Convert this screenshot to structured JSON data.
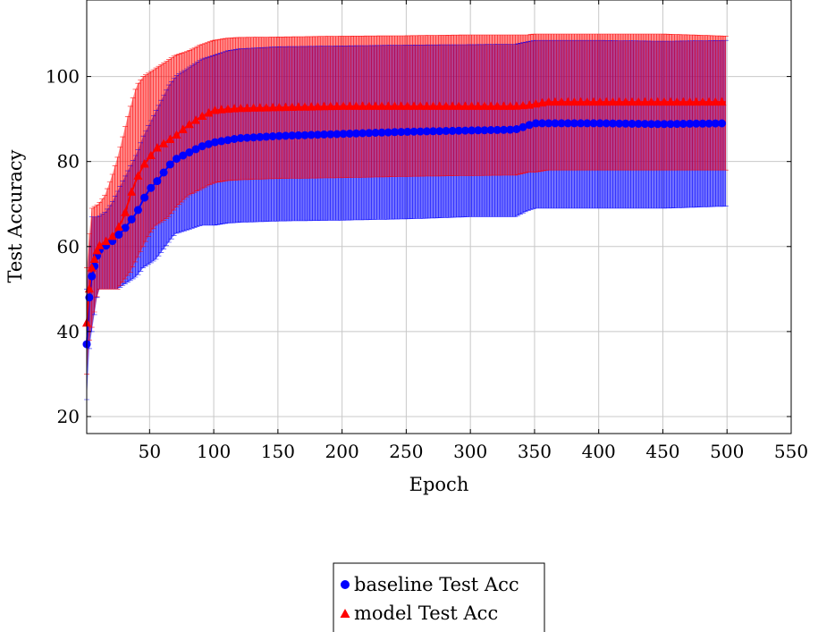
{
  "chart_data": {
    "type": "line",
    "xlabel": "Epoch",
    "ylabel": "Test Accuracy",
    "xlim": [
      1,
      550
    ],
    "ylim": [
      16,
      118
    ],
    "xticks": [
      50,
      100,
      150,
      200,
      250,
      300,
      350,
      400,
      450,
      500,
      550
    ],
    "yticks": [
      20,
      40,
      60,
      80,
      100
    ],
    "grid": true,
    "legend_position": "bottom-center",
    "series": [
      {
        "name": "baseline Test Acc",
        "color": "#0000ff",
        "marker": "circle",
        "x": [
          1,
          3,
          5,
          10,
          15,
          20,
          25,
          30,
          35,
          40,
          45,
          50,
          55,
          60,
          65,
          70,
          80,
          90,
          100,
          110,
          120,
          150,
          200,
          250,
          300,
          335,
          345,
          350,
          400,
          450,
          500
        ],
        "mean": [
          37,
          48,
          53,
          59,
          60,
          61,
          62.5,
          64,
          66,
          68,
          71,
          73.5,
          75,
          77,
          79,
          80.5,
          82,
          83.5,
          84.5,
          85,
          85.5,
          86,
          86.5,
          87,
          87.3,
          87.5,
          88.5,
          89,
          89,
          88.8,
          89
        ],
        "upper": [
          50,
          60,
          67,
          67,
          68,
          70,
          73,
          76,
          79,
          82,
          86,
          89,
          92,
          95,
          98,
          100,
          102,
          104,
          105,
          106,
          106.5,
          107,
          107.2,
          107.4,
          107.5,
          107.6,
          108.2,
          108.5,
          108.5,
          108.3,
          108.5
        ],
        "lower": [
          24,
          36,
          40,
          50,
          50,
          50,
          50,
          51,
          52,
          53,
          55,
          56,
          57,
          59,
          61,
          63,
          64,
          65,
          65,
          65.5,
          65.7,
          66,
          66.2,
          66.5,
          67,
          67,
          68.5,
          69,
          69,
          69,
          69.5
        ]
      },
      {
        "name": "model Test Acc",
        "color": "#ff0000",
        "marker": "triangle",
        "x": [
          1,
          3,
          5,
          10,
          15,
          20,
          25,
          30,
          35,
          40,
          45,
          50,
          55,
          60,
          65,
          70,
          80,
          90,
          100,
          110,
          120,
          150,
          200,
          250,
          300,
          335,
          345,
          350,
          360,
          400,
          450,
          500
        ],
        "mean": [
          42,
          50,
          55,
          60,
          61,
          62,
          64,
          67,
          72,
          76,
          79,
          81,
          83,
          84,
          85,
          86,
          88.5,
          90.5,
          92,
          92.3,
          92.5,
          92.7,
          93,
          93,
          93,
          93,
          93.2,
          93.5,
          94,
          94,
          94,
          94
        ],
        "upper": [
          55,
          63,
          69,
          70,
          72,
          76,
          81,
          87,
          93,
          98,
          100,
          101,
          102,
          103,
          104,
          105,
          106,
          107.5,
          108.5,
          109,
          109.2,
          109.3,
          109.5,
          109.6,
          109.8,
          109.8,
          109.8,
          110,
          110,
          110,
          110,
          109.5
        ],
        "lower": [
          30,
          38,
          41,
          50,
          50,
          50,
          50,
          52,
          54,
          57,
          60,
          63,
          65,
          66,
          67,
          69,
          72,
          73.5,
          75,
          75.5,
          75.7,
          76,
          76.2,
          76.5,
          76.7,
          76.8,
          77.5,
          77.5,
          78,
          78,
          78,
          78
        ]
      }
    ]
  }
}
